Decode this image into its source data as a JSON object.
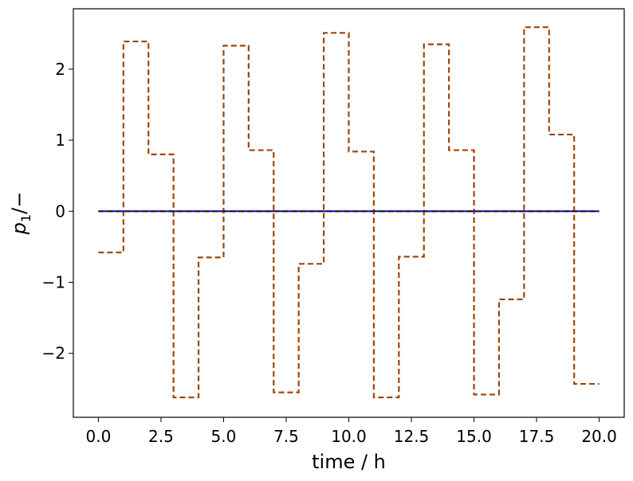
{
  "chart_data": {
    "type": "line",
    "xlabel": "time / h",
    "ylabel_main": "p",
    "ylabel_sub": "1",
    "ylabel_suffix": "/−",
    "xlim": [
      -1.0,
      21.0
    ],
    "ylim": [
      -2.9,
      2.85
    ],
    "x_ticks": [
      0.0,
      2.5,
      5.0,
      7.5,
      10.0,
      12.5,
      15.0,
      17.5,
      20.0
    ],
    "x_tick_labels": [
      "0.0",
      "2.5",
      "5.0",
      "7.5",
      "10.0",
      "12.5",
      "15.0",
      "17.5",
      "20.0"
    ],
    "y_ticks": [
      -2,
      -1,
      0,
      1,
      2
    ],
    "y_tick_labels": [
      "−2",
      "−1",
      "0",
      "1",
      "2"
    ],
    "grid": false,
    "series": [
      {
        "style": "steps-dashed",
        "color": "#a0460a",
        "x": [
          0,
          1,
          2,
          3,
          4,
          5,
          6,
          7,
          8,
          9,
          10,
          11,
          12,
          13,
          14,
          15,
          16,
          17,
          18,
          19,
          20
        ],
        "values": [
          -0.58,
          2.39,
          0.8,
          -2.62,
          -0.65,
          2.33,
          0.86,
          -2.55,
          -0.74,
          2.51,
          0.84,
          -2.62,
          -0.64,
          2.35,
          0.86,
          -2.58,
          -1.24,
          2.59,
          1.08,
          -2.43,
          -2.43
        ]
      },
      {
        "style": "solid",
        "color": "#0000ff",
        "x": [
          0,
          20
        ],
        "values": [
          0,
          0
        ]
      },
      {
        "style": "dashed",
        "color": "#222222",
        "x": [
          0,
          20
        ],
        "values": [
          0,
          0
        ]
      }
    ]
  }
}
